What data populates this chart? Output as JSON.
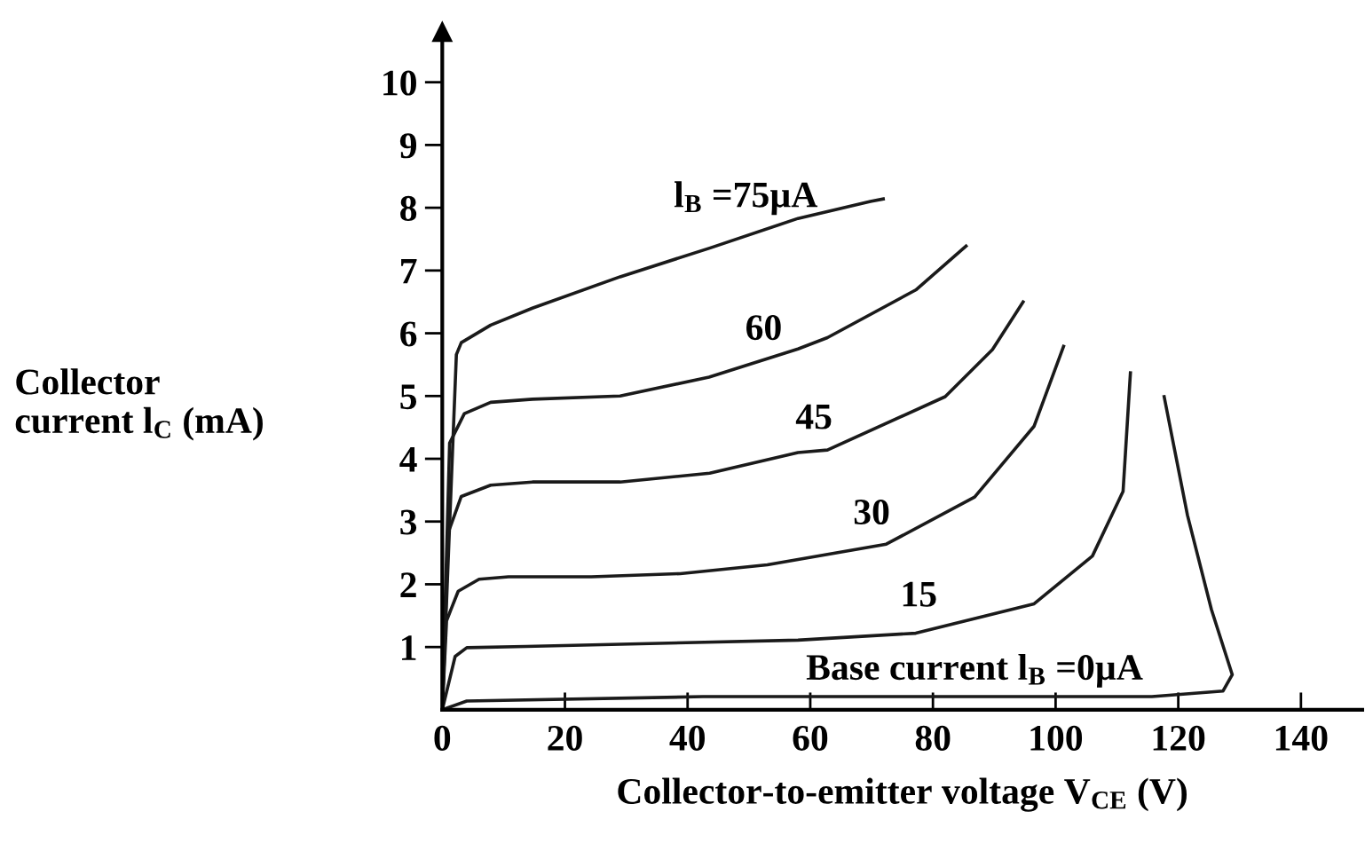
{
  "chart_data": {
    "type": "line",
    "xlabel": "Collector-to-emitter voltage V$_{CE}$ (V)",
    "ylabel": "Collector\ncurrent l$_{C}$ (mA)",
    "xlim": [
      0,
      150
    ],
    "ylim": [
      0,
      10.8
    ],
    "xticks": [
      0,
      20,
      40,
      60,
      80,
      100,
      120,
      140
    ],
    "yticks": [
      1,
      2,
      3,
      4,
      5,
      6,
      7,
      8,
      9,
      10
    ],
    "grid": false,
    "line_style": "solid",
    "marker": "none",
    "series": [
      {
        "name": "l$_{B}$ =75µA",
        "color": "#1a1a1a",
        "x": [
          0,
          2.3,
          3.1,
          7.9,
          14.7,
          29,
          43.7,
          58,
          69.8,
          71.9
        ],
        "values": [
          0,
          5.66,
          5.85,
          6.13,
          6.4,
          6.9,
          7.36,
          7.83,
          8.1,
          8.14
        ]
      },
      {
        "name": "60",
        "color": "#1a1a1a",
        "x": [
          0,
          1.2,
          3.6,
          7.9,
          14.7,
          29,
          43.5,
          58,
          62.8,
          77.2,
          85.4
        ],
        "values": [
          0,
          4.25,
          4.72,
          4.9,
          4.95,
          5.0,
          5.3,
          5.75,
          5.93,
          6.69,
          7.39
        ]
      },
      {
        "name": "45",
        "color": "#1a1a1a",
        "x": [
          0,
          1,
          3.1,
          7.9,
          14.7,
          29,
          43.6,
          58,
          62.8,
          82,
          89.7,
          94.7
        ],
        "values": [
          0,
          2.83,
          3.4,
          3.58,
          3.63,
          3.63,
          3.77,
          4.1,
          4.14,
          4.99,
          5.74,
          6.5
        ]
      },
      {
        "name": "30",
        "color": "#1a1a1a",
        "x": [
          0,
          0.7,
          2.6,
          6,
          10.8,
          24.3,
          38.8,
          53,
          72.4,
          86.8,
          96.5,
          101.3
        ],
        "values": [
          0,
          1.42,
          1.89,
          2.08,
          2.12,
          2.12,
          2.17,
          2.31,
          2.64,
          3.39,
          4.52,
          5.79
        ]
      },
      {
        "name": "15",
        "color": "#1a1a1a",
        "x": [
          0,
          2.1,
          4,
          13.6,
          58,
          77.2,
          96.5,
          106,
          111,
          112.2
        ],
        "values": [
          0,
          0.85,
          0.99,
          1.01,
          1.11,
          1.22,
          1.69,
          2.45,
          3.48,
          5.37
        ]
      },
      {
        "name": "Base current l$_{B}$ =0µA",
        "color": "#1a1a1a",
        "x": [
          0,
          4,
          42.5,
          90.6,
          115.7,
          127.3,
          128.8,
          125.4,
          121.5,
          117.7
        ],
        "values": [
          0,
          0.14,
          0.21,
          0.21,
          0.21,
          0.3,
          0.56,
          1.6,
          3.1,
          4.99
        ]
      }
    ]
  }
}
